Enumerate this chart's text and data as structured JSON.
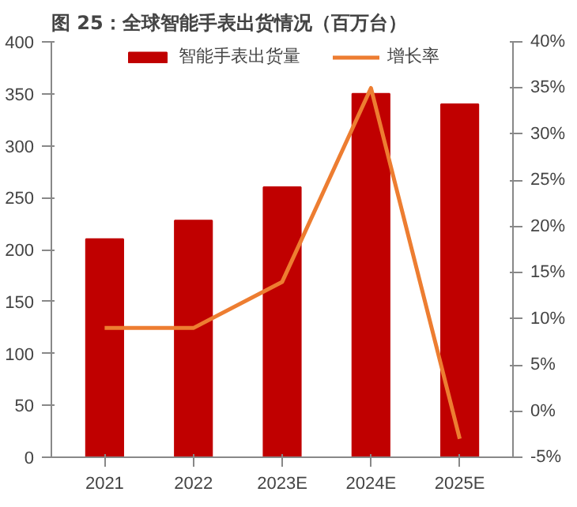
{
  "chart_data": {
    "type": "bar",
    "title": "图 25：全球智能手表出货情况（百万台）",
    "categories": [
      "2021",
      "2022",
      "2023E",
      "2024E",
      "2025E"
    ],
    "series": [
      {
        "name": "智能手表出货量",
        "color": "#c00000",
        "values": [
          210,
          228,
          260,
          350,
          340
        ]
      },
      {
        "name": "增长率",
        "color": "#ed7d31",
        "type": "line",
        "axis": "y2",
        "values": [
          9,
          9,
          14,
          35,
          -3
        ]
      }
    ],
    "ylim": [
      0,
      400
    ],
    "yticks": [
      0,
      50,
      100,
      150,
      200,
      250,
      300,
      350,
      400
    ],
    "y2lim": [
      -5,
      40
    ],
    "y2ticks": [
      {
        "value": -5,
        "label": "-5%"
      },
      {
        "value": 0,
        "label": "0%"
      },
      {
        "value": 5,
        "label": "5%"
      },
      {
        "value": 10,
        "label": "10%"
      },
      {
        "value": 15,
        "label": "15%"
      },
      {
        "value": 20,
        "label": "20%"
      },
      {
        "value": 25,
        "label": "25%"
      },
      {
        "value": 30,
        "label": "30%"
      },
      {
        "value": 35,
        "label": "35%"
      },
      {
        "value": 40,
        "label": "40%"
      }
    ],
    "legend": "top",
    "grid": false
  }
}
